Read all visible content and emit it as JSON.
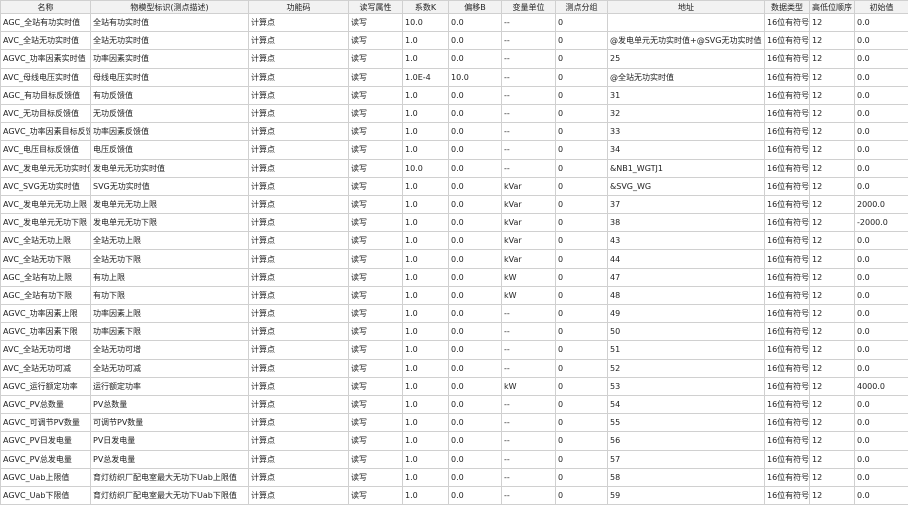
{
  "table": {
    "headers": [
      "名称",
      "物模型标识(测点描述)",
      "功能码",
      "读写属性",
      "系数K",
      "偏移B",
      "变量单位",
      "测点分组",
      "地址",
      "数据类型",
      "高低位顺序",
      "初始值"
    ],
    "rows": [
      [
        "AGC_全站有功实时值",
        "全站有功实时值",
        "计算点",
        "读写",
        "10.0",
        "0.0",
        "--",
        "0",
        "",
        "16位有符号",
        "12",
        "0.0"
      ],
      [
        "AVC_全站无功实时值",
        "全站无功实时值",
        "计算点",
        "读写",
        "1.0",
        "0.0",
        "--",
        "0",
        "@发电单元无功实时值+@SVG无功实时值",
        "16位有符号",
        "12",
        "0.0"
      ],
      [
        "AGVC_功率因素实时值",
        "功率因素实时值",
        "计算点",
        "读写",
        "1.0",
        "0.0",
        "--",
        "0",
        "25",
        "16位有符号",
        "12",
        "0.0"
      ],
      [
        "AVC_母线电压实时值",
        "母线电压实时值",
        "计算点",
        "读写",
        "1.0E-4",
        "10.0",
        "--",
        "0",
        "@全站无功实时值",
        "16位有符号",
        "12",
        "0.0"
      ],
      [
        "AGC_有功目标反馈值",
        "有功反馈值",
        "计算点",
        "读写",
        "1.0",
        "0.0",
        "--",
        "0",
        "31",
        "16位有符号",
        "12",
        "0.0"
      ],
      [
        "AVC_无功目标反馈值",
        "无功反馈值",
        "计算点",
        "读写",
        "1.0",
        "0.0",
        "--",
        "0",
        "32",
        "16位有符号",
        "12",
        "0.0"
      ],
      [
        "AGVC_功率因素目标反馈值",
        "功率因素反馈值",
        "计算点",
        "读写",
        "1.0",
        "0.0",
        "--",
        "0",
        "33",
        "16位有符号",
        "12",
        "0.0"
      ],
      [
        "AVC_电压目标反馈值",
        "电压反馈值",
        "计算点",
        "读写",
        "1.0",
        "0.0",
        "--",
        "0",
        "34",
        "16位有符号",
        "12",
        "0.0"
      ],
      [
        "AVC_发电单元无功实时值",
        "发电单元无功实时值",
        "计算点",
        "读写",
        "10.0",
        "0.0",
        "--",
        "0",
        "&NB1_WGTJ1",
        "16位有符号",
        "12",
        "0.0"
      ],
      [
        "AVC_SVG无功实时值",
        "SVG无功实时值",
        "计算点",
        "读写",
        "1.0",
        "0.0",
        "kVar",
        "0",
        "&SVG_WG",
        "16位有符号",
        "12",
        "0.0"
      ],
      [
        "AVC_发电单元无功上限",
        "发电单元无功上限",
        "计算点",
        "读写",
        "1.0",
        "0.0",
        "kVar",
        "0",
        "37",
        "16位有符号",
        "12",
        "2000.0"
      ],
      [
        "AVC_发电单元无功下限",
        "发电单元无功下限",
        "计算点",
        "读写",
        "1.0",
        "0.0",
        "kVar",
        "0",
        "38",
        "16位有符号",
        "12",
        "-2000.0"
      ],
      [
        "AVC_全站无功上限",
        "全站无功上限",
        "计算点",
        "读写",
        "1.0",
        "0.0",
        "kVar",
        "0",
        "43",
        "16位有符号",
        "12",
        "0.0"
      ],
      [
        "AVC_全站无功下限",
        "全站无功下限",
        "计算点",
        "读写",
        "1.0",
        "0.0",
        "kVar",
        "0",
        "44",
        "16位有符号",
        "12",
        "0.0"
      ],
      [
        "AGC_全站有功上限",
        "有功上限",
        "计算点",
        "读写",
        "1.0",
        "0.0",
        "kW",
        "0",
        "47",
        "16位有符号",
        "12",
        "0.0"
      ],
      [
        "AGC_全站有功下限",
        "有功下限",
        "计算点",
        "读写",
        "1.0",
        "0.0",
        "kW",
        "0",
        "48",
        "16位有符号",
        "12",
        "0.0"
      ],
      [
        "AGVC_功率因素上限",
        "功率因素上限",
        "计算点",
        "读写",
        "1.0",
        "0.0",
        "--",
        "0",
        "49",
        "16位有符号",
        "12",
        "0.0"
      ],
      [
        "AGVC_功率因素下限",
        "功率因素下限",
        "计算点",
        "读写",
        "1.0",
        "0.0",
        "--",
        "0",
        "50",
        "16位有符号",
        "12",
        "0.0"
      ],
      [
        "AVC_全站无功可增",
        "全站无功可增",
        "计算点",
        "读写",
        "1.0",
        "0.0",
        "--",
        "0",
        "51",
        "16位有符号",
        "12",
        "0.0"
      ],
      [
        "AVC_全站无功可减",
        "全站无功可减",
        "计算点",
        "读写",
        "1.0",
        "0.0",
        "--",
        "0",
        "52",
        "16位有符号",
        "12",
        "0.0"
      ],
      [
        "AGVC_运行额定功率",
        "运行额定功率",
        "计算点",
        "读写",
        "1.0",
        "0.0",
        "kW",
        "0",
        "53",
        "16位有符号",
        "12",
        "4000.0"
      ],
      [
        "AGVC_PV总数量",
        "PV总数量",
        "计算点",
        "读写",
        "1.0",
        "0.0",
        "--",
        "0",
        "54",
        "16位有符号",
        "12",
        "0.0"
      ],
      [
        "AGVC_可调节PV数量",
        "可调节PV数量",
        "计算点",
        "读写",
        "1.0",
        "0.0",
        "--",
        "0",
        "55",
        "16位有符号",
        "12",
        "0.0"
      ],
      [
        "AGVC_PV日发电量",
        "PV日发电量",
        "计算点",
        "读写",
        "1.0",
        "0.0",
        "--",
        "0",
        "56",
        "16位有符号",
        "12",
        "0.0"
      ],
      [
        "AGVC_PV总发电量",
        "PV总发电量",
        "计算点",
        "读写",
        "1.0",
        "0.0",
        "--",
        "0",
        "57",
        "16位有符号",
        "12",
        "0.0"
      ],
      [
        "AGVC_Uab上限值",
        "育灯纺织厂配电室最大无功下Uab上限值",
        "计算点",
        "读写",
        "1.0",
        "0.0",
        "--",
        "0",
        "58",
        "16位有符号",
        "12",
        "0.0"
      ],
      [
        "AGVC_Uab下限值",
        "育灯纺织厂配电室最大无功下Uab下限值",
        "计算点",
        "读写",
        "1.0",
        "0.0",
        "--",
        "0",
        "59",
        "16位有符号",
        "12",
        "0.0"
      ]
    ]
  }
}
